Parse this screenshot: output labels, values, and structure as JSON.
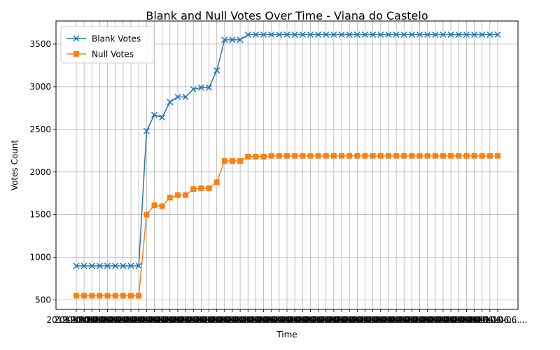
{
  "chart_data": {
    "type": "line",
    "title": "Blank and Null Votes Over Time - Viana do Castelo",
    "xlabel": "Time",
    "ylabel": "Votes Count",
    "x_tick_text": "2019-10-06 ...",
    "ylim": [
      390,
      3770
    ],
    "yticks": [
      500,
      1000,
      1500,
      2000,
      2500,
      3000,
      3500
    ],
    "grid": true,
    "legend_position": "top-left",
    "point_count": 55,
    "series": [
      {
        "name": "Blank Votes",
        "color": "#1f77b4",
        "marker": "x",
        "values": [
          900,
          900,
          900,
          900,
          900,
          900,
          900,
          900,
          900,
          2480,
          2670,
          2640,
          2820,
          2880,
          2880,
          2970,
          2990,
          2990,
          3190,
          3550,
          3550,
          3550,
          3610,
          3610,
          3610,
          3610,
          3610,
          3610,
          3610,
          3610,
          3610,
          3610,
          3610,
          3610,
          3610,
          3610,
          3610,
          3610,
          3610,
          3610,
          3610,
          3610,
          3610,
          3610,
          3610,
          3610,
          3610,
          3610,
          3610,
          3610,
          3610,
          3610,
          3610,
          3610,
          3610
        ]
      },
      {
        "name": "Null Votes",
        "color": "#ff7f0e",
        "marker": "s",
        "values": [
          550,
          550,
          550,
          550,
          550,
          550,
          550,
          550,
          550,
          1500,
          1610,
          1600,
          1700,
          1730,
          1730,
          1800,
          1810,
          1810,
          1880,
          2130,
          2130,
          2130,
          2180,
          2180,
          2180,
          2190,
          2190,
          2190,
          2190,
          2190,
          2190,
          2190,
          2190,
          2190,
          2190,
          2190,
          2190,
          2190,
          2190,
          2190,
          2190,
          2190,
          2190,
          2190,
          2190,
          2190,
          2190,
          2190,
          2190,
          2190,
          2190,
          2190,
          2190,
          2190,
          2190
        ]
      }
    ]
  }
}
